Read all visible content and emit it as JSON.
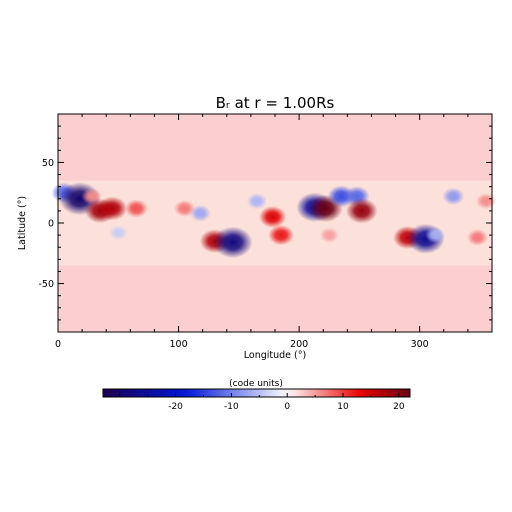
{
  "chart_data": {
    "type": "heatmap",
    "title": "Bᵣ at r = 1.00Rs",
    "xlabel": "Longitude (°)",
    "ylabel": "Latitude (°)",
    "xlim": [
      0,
      360
    ],
    "ylim": [
      -90,
      90
    ],
    "x_ticks": [
      "0",
      "100",
      "200",
      "300"
    ],
    "y_ticks": [
      "50",
      "0",
      "-50"
    ],
    "colorbar": {
      "label": "(code units)",
      "range": [
        -33,
        22
      ],
      "ticks": [
        "-20",
        "-10",
        "0",
        "10",
        "20"
      ],
      "colormap": [
        "#1a0050",
        "#0018d8",
        "#ffffff",
        "#e80000",
        "#6a0015"
      ]
    },
    "background_level": 2.5,
    "features": [
      {
        "lon": 5,
        "lat": 25,
        "value": -12
      },
      {
        "lon": 18,
        "lat": 20,
        "value": -30
      },
      {
        "lon": 28,
        "lat": 22,
        "value": 6
      },
      {
        "lon": 35,
        "lat": 10,
        "value": 18
      },
      {
        "lon": 45,
        "lat": 12,
        "value": 17
      },
      {
        "lon": 50,
        "lat": -8,
        "value": -4
      },
      {
        "lon": 65,
        "lat": 12,
        "value": 9
      },
      {
        "lon": 105,
        "lat": 12,
        "value": 7
      },
      {
        "lon": 118,
        "lat": 8,
        "value": -7
      },
      {
        "lon": 130,
        "lat": -15,
        "value": 17
      },
      {
        "lon": 145,
        "lat": -16,
        "value": -28
      },
      {
        "lon": 165,
        "lat": 18,
        "value": -6
      },
      {
        "lon": 178,
        "lat": 5,
        "value": 14
      },
      {
        "lon": 185,
        "lat": -10,
        "value": 12
      },
      {
        "lon": 213,
        "lat": 13,
        "value": -25
      },
      {
        "lon": 222,
        "lat": 12,
        "value": 22
      },
      {
        "lon": 235,
        "lat": 22,
        "value": -14
      },
      {
        "lon": 248,
        "lat": 22,
        "value": -12
      },
      {
        "lon": 252,
        "lat": 10,
        "value": 19
      },
      {
        "lon": 225,
        "lat": -10,
        "value": 5
      },
      {
        "lon": 290,
        "lat": -12,
        "value": 16
      },
      {
        "lon": 305,
        "lat": -13,
        "value": -26
      },
      {
        "lon": 313,
        "lat": -10,
        "value": -6
      },
      {
        "lon": 328,
        "lat": 22,
        "value": -8
      },
      {
        "lon": 348,
        "lat": -12,
        "value": 7
      },
      {
        "lon": 355,
        "lat": 18,
        "value": 6
      }
    ]
  }
}
